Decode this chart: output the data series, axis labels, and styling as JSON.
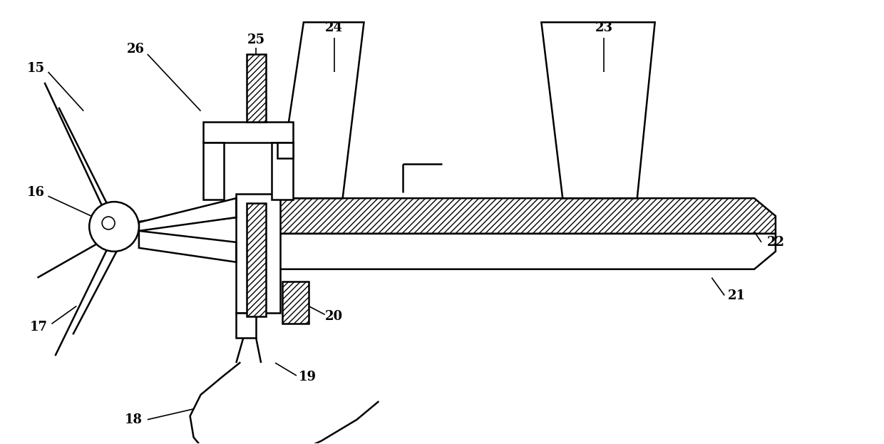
{
  "bg_color": "#ffffff",
  "line_color": "#000000",
  "lw": 1.8,
  "lw_thin": 1.2,
  "figsize": [
    12.4,
    6.23
  ],
  "dpi": 100
}
